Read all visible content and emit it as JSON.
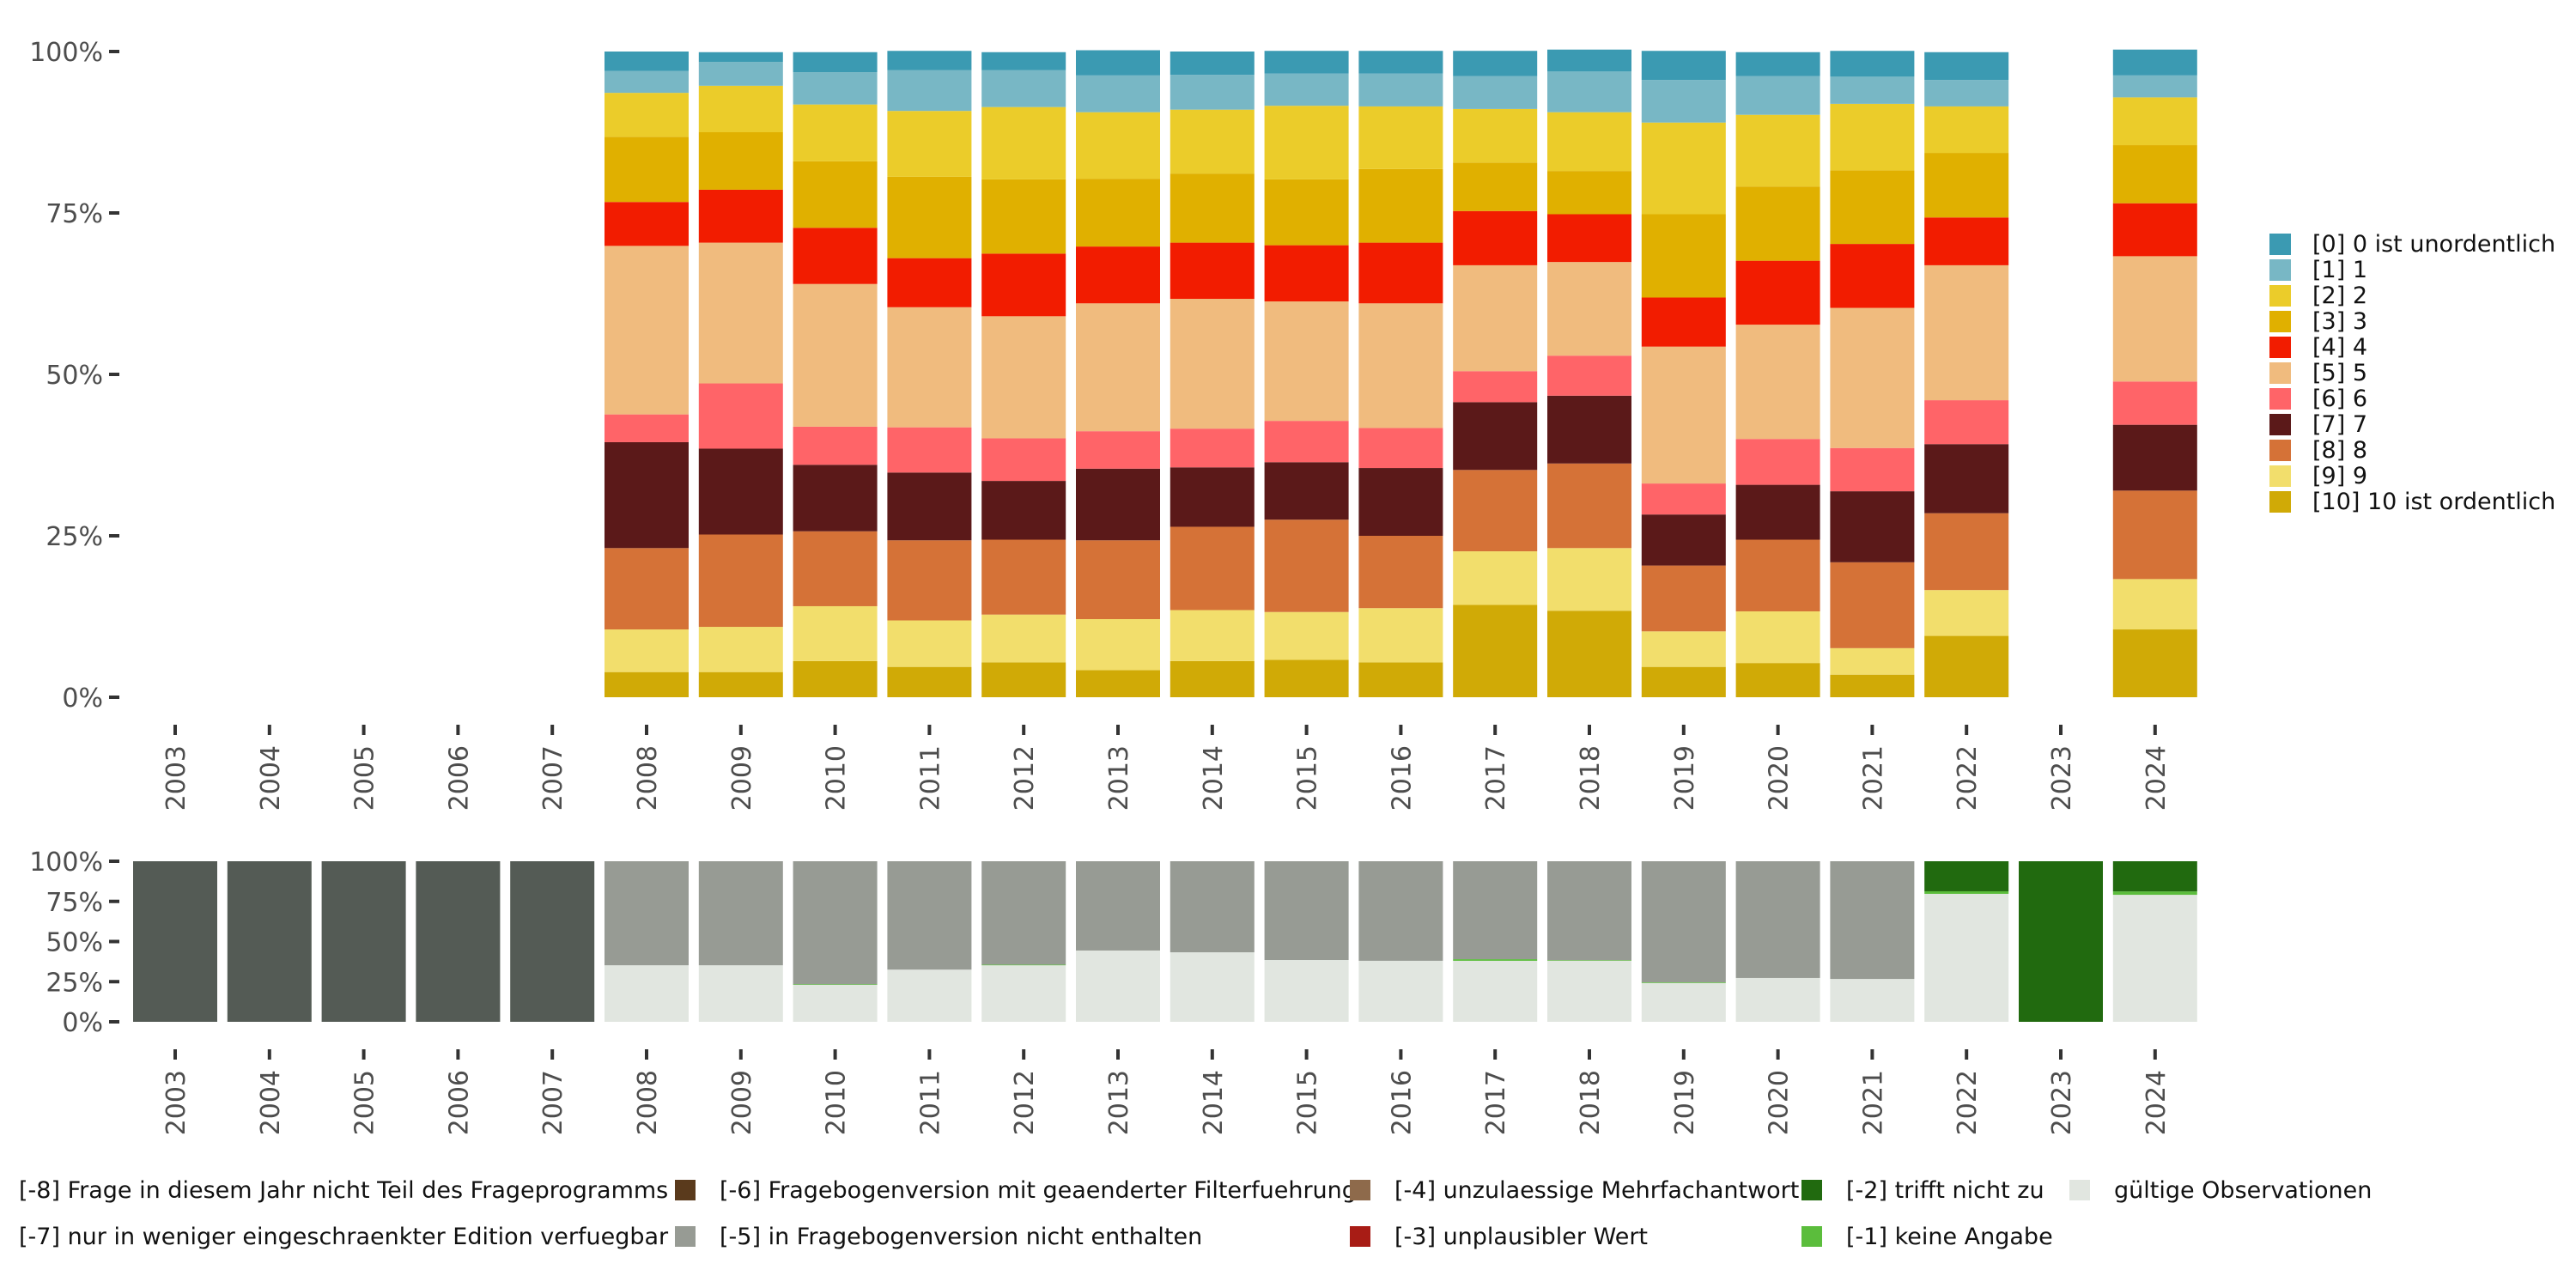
{
  "chart_data": [
    {
      "type": "bar",
      "stacked": true,
      "position": "fill",
      "title": "",
      "xlabel": "",
      "ylabel": "",
      "ylim": [
        0,
        100
      ],
      "y_ticks": [
        "0%",
        "25%",
        "50%",
        "75%",
        "100%"
      ],
      "grid": false,
      "legend_position": "right",
      "categories": [
        "2003",
        "2004",
        "2005",
        "2006",
        "2007",
        "2008",
        "2009",
        "2010",
        "2011",
        "2012",
        "2013",
        "2014",
        "2015",
        "2016",
        "2017",
        "2018",
        "2019",
        "2020",
        "2021",
        "2022",
        "2023",
        "2024"
      ],
      "series": [
        {
          "name": "[10] 10 ist ordentlich",
          "color": "#d0aa06",
          "values": [
            null,
            null,
            null,
            null,
            null,
            3.9,
            3.9,
            5.6,
            4.7,
            5.4,
            4.2,
            5.6,
            5.8,
            5.4,
            14.3,
            13.4,
            4.7,
            5.3,
            3.5,
            9.5,
            null,
            10.5
          ]
        },
        {
          "name": "[9] 9",
          "color": "#f2de6c",
          "values": [
            null,
            null,
            null,
            null,
            null,
            6.6,
            7.0,
            8.5,
            7.2,
            7.4,
            7.9,
            7.9,
            7.4,
            8.4,
            8.3,
            9.7,
            5.5,
            8.0,
            4.1,
            7.1,
            null,
            7.8
          ]
        },
        {
          "name": "[8] 8",
          "color": "#d57237",
          "values": [
            null,
            null,
            null,
            null,
            null,
            12.6,
            14.3,
            11.6,
            12.4,
            11.6,
            12.2,
            12.9,
            14.3,
            11.2,
            12.6,
            13.1,
            10.2,
            11.1,
            13.3,
            11.9,
            null,
            13.7
          ]
        },
        {
          "name": "[7] 7",
          "color": "#5b1919",
          "values": [
            null,
            null,
            null,
            null,
            null,
            16.4,
            13.3,
            10.3,
            10.5,
            9.1,
            11.1,
            9.2,
            8.9,
            10.5,
            10.5,
            10.5,
            7.9,
            8.5,
            11.0,
            10.7,
            null,
            10.2
          ]
        },
        {
          "name": "[6] 6",
          "color": "#ff6468",
          "values": [
            null,
            null,
            null,
            null,
            null,
            4.3,
            10.1,
            5.9,
            7.0,
            6.6,
            5.8,
            6.0,
            6.4,
            6.2,
            4.8,
            6.2,
            4.8,
            7.1,
            6.7,
            6.8,
            null,
            6.7
          ]
        },
        {
          "name": "[5] 5",
          "color": "#f0bb7e",
          "values": [
            null,
            null,
            null,
            null,
            null,
            26.1,
            21.8,
            22.1,
            18.6,
            18.9,
            19.8,
            20.1,
            18.5,
            19.3,
            16.4,
            14.5,
            21.2,
            17.7,
            21.7,
            20.9,
            null,
            19.4
          ]
        },
        {
          "name": "[4] 4",
          "color": "#f21c00",
          "values": [
            null,
            null,
            null,
            null,
            null,
            6.8,
            8.2,
            8.7,
            7.6,
            9.7,
            8.8,
            8.7,
            8.7,
            9.4,
            8.4,
            7.4,
            7.6,
            9.9,
            9.9,
            7.4,
            null,
            8.2
          ]
        },
        {
          "name": "[3] 3",
          "color": "#e0b000",
          "values": [
            null,
            null,
            null,
            null,
            null,
            10.1,
            8.9,
            10.3,
            12.6,
            11.5,
            10.5,
            10.7,
            10.2,
            11.4,
            7.5,
            6.7,
            12.9,
            11.5,
            11.4,
            10.0,
            null,
            9.0
          ]
        },
        {
          "name": "[2] 2",
          "color": "#ebcc2a",
          "values": [
            null,
            null,
            null,
            null,
            null,
            6.8,
            7.2,
            8.8,
            10.2,
            11.2,
            10.3,
            9.9,
            11.4,
            9.7,
            8.3,
            9.1,
            14.2,
            11.1,
            10.3,
            7.2,
            null,
            7.4
          ]
        },
        {
          "name": "[1] 1",
          "color": "#78b7c5",
          "values": [
            null,
            null,
            null,
            null,
            null,
            3.4,
            3.7,
            5.0,
            6.3,
            5.7,
            5.7,
            5.4,
            5.0,
            5.1,
            5.1,
            6.3,
            6.6,
            6.0,
            4.2,
            4.1,
            null,
            3.4
          ]
        },
        {
          "name": "[0] 0 ist unordentlich",
          "color": "#3b9ab2",
          "values": [
            null,
            null,
            null,
            null,
            null,
            3.0,
            1.5,
            3.1,
            3.0,
            2.8,
            3.9,
            3.6,
            3.5,
            3.5,
            3.9,
            3.4,
            4.5,
            3.7,
            4.0,
            4.3,
            null,
            4.0
          ]
        }
      ]
    },
    {
      "type": "bar",
      "stacked": true,
      "position": "fill",
      "title": "",
      "xlabel": "",
      "ylabel": "",
      "ylim": [
        0,
        100
      ],
      "y_ticks": [
        "0%",
        "25%",
        "50%",
        "75%",
        "100%"
      ],
      "grid": false,
      "legend_position": "bottom",
      "categories": [
        "2003",
        "2004",
        "2005",
        "2006",
        "2007",
        "2008",
        "2009",
        "2010",
        "2011",
        "2012",
        "2013",
        "2014",
        "2015",
        "2016",
        "2017",
        "2018",
        "2019",
        "2020",
        "2021",
        "2022",
        "2023",
        "2024"
      ],
      "series": [
        {
          "name": "gültige Observationen",
          "color": "#e1e6e0",
          "values": [
            0,
            0,
            0,
            0,
            0,
            35.2,
            35.2,
            23.0,
            32.5,
            35.2,
            44.4,
            43.3,
            38.5,
            38.0,
            38.0,
            38.0,
            24.2,
            27.3,
            26.7,
            79.7,
            0,
            79.1
          ]
        },
        {
          "name": "[-1] keine Angabe",
          "color": "#5bbd3c",
          "values": [
            0,
            0,
            0,
            0,
            0,
            0,
            0,
            0.4,
            0,
            0.4,
            0,
            0,
            0,
            0,
            1.0,
            0.4,
            0.4,
            0,
            0,
            1.6,
            0,
            2.1
          ]
        },
        {
          "name": "[-2] trifft nicht zu",
          "color": "#216a0f",
          "values": [
            0,
            0,
            0,
            0,
            0,
            0,
            0,
            0,
            0,
            0,
            0,
            0,
            0,
            0,
            0,
            0,
            0,
            0,
            0,
            18.7,
            100,
            18.8
          ]
        },
        {
          "name": "[-3] unplausibler Wert",
          "color": "#a81c15",
          "values": [
            0,
            0,
            0,
            0,
            0,
            0,
            0,
            0,
            0,
            0,
            0,
            0,
            0,
            0,
            0,
            0,
            0,
            0,
            0,
            0,
            0,
            0
          ]
        },
        {
          "name": "[-4] unzulaessige Mehrfachantwort",
          "color": "#8e6a4b",
          "values": [
            0,
            0,
            0,
            0,
            0,
            0,
            0,
            0,
            0,
            0,
            0,
            0,
            0,
            0,
            0,
            0,
            0,
            0,
            0,
            0,
            0,
            0
          ]
        },
        {
          "name": "[-5] in Fragebogenversion nicht enthalten",
          "color": "#979b94",
          "values": [
            0,
            0,
            0,
            0,
            0,
            64.8,
            64.8,
            76.6,
            67.5,
            64.4,
            55.6,
            56.7,
            61.5,
            62.0,
            61.0,
            61.6,
            75.4,
            72.7,
            73.3,
            0,
            0,
            0
          ]
        },
        {
          "name": "[-6] Fragebogenversion mit geaenderter Filterfuehrung",
          "color": "#5a3a1c",
          "values": [
            0,
            0,
            0,
            0,
            0,
            0,
            0,
            0,
            0,
            0,
            0,
            0,
            0,
            0,
            0,
            0,
            0,
            0,
            0,
            0,
            0,
            0
          ]
        },
        {
          "name": "[-7] nur in weniger eingeschraenkter Edition verfuegbar",
          "color": "#979b94",
          "values": [
            0,
            0,
            0,
            0,
            0,
            0,
            0,
            0,
            0,
            0,
            0,
            0,
            0,
            0,
            0,
            0,
            0,
            0,
            0,
            0,
            0,
            0
          ]
        },
        {
          "name": "[-8] Frage in diesem Jahr nicht Teil des Frageprogramms",
          "color": "#545b55",
          "values": [
            100,
            100,
            100,
            100,
            100,
            0,
            0,
            0,
            0,
            0,
            0,
            0,
            0,
            0,
            0,
            0,
            0,
            0,
            0,
            0,
            0,
            0
          ]
        }
      ]
    }
  ],
  "legends": {
    "top": [
      {
        "label": "[0] 0 ist unordentlich",
        "color": "#3b9ab2"
      },
      {
        "label": "[1] 1",
        "color": "#78b7c5"
      },
      {
        "label": "[2] 2",
        "color": "#ebcc2a"
      },
      {
        "label": "[3] 3",
        "color": "#e0b000"
      },
      {
        "label": "[4] 4",
        "color": "#f21c00"
      },
      {
        "label": "[5] 5",
        "color": "#f0bb7e"
      },
      {
        "label": "[6] 6",
        "color": "#ff6468"
      },
      {
        "label": "[7] 7",
        "color": "#5b1919"
      },
      {
        "label": "[8] 8",
        "color": "#d57237"
      },
      {
        "label": "[9] 9",
        "color": "#f2de6c"
      },
      {
        "label": "[10] 10 ist ordentlich",
        "color": "#d0aa06"
      }
    ],
    "bottom": [
      {
        "label": "[-8] Frage in diesem Jahr nicht Teil des Frageprogramms",
        "color": "#545b55"
      },
      {
        "label": "[-7] nur in weniger eingeschraenkter Edition verfuegbar",
        "color": "#979b94"
      },
      {
        "label": "[-6] Fragebogenversion mit geaenderter Filterfuehrung",
        "color": "#5a3a1c"
      },
      {
        "label": "[-5] in Fragebogenversion nicht enthalten",
        "color": "#979b94"
      },
      {
        "label": "[-4] unzulaessige Mehrfachantwort",
        "color": "#8e6a4b"
      },
      {
        "label": "[-3] unplausibler Wert",
        "color": "#a81c15"
      },
      {
        "label": "[-2] trifft nicht zu",
        "color": "#216a0f"
      },
      {
        "label": "[-1] keine Angabe",
        "color": "#5bbd3c"
      },
      {
        "label": "gültige Observationen",
        "color": "#e1e6e0"
      }
    ]
  }
}
